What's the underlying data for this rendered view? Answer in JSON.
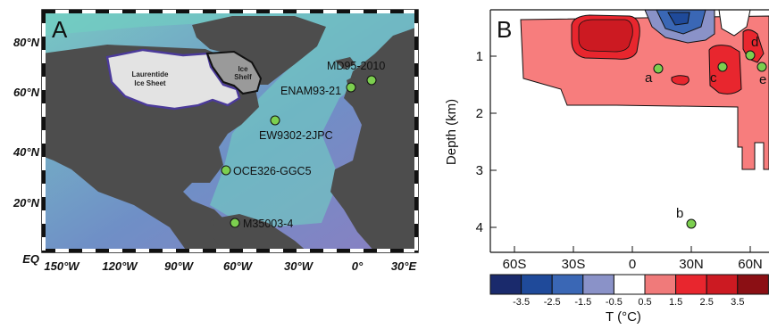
{
  "panel_a": {
    "label": "A",
    "lat_labels": [
      "80°N",
      "60°N",
      "40°N",
      "20°N",
      "EQ"
    ],
    "lon_labels": [
      "150°W",
      "120°W",
      "90°W",
      "60°W",
      "30°W",
      "0°",
      "30°E"
    ],
    "ice_sheet": "Laurentide Ice Sheet",
    "ice_shelf": "Ice Shelf",
    "sites": [
      "MD95-2010",
      "ENAM93-21",
      "EW9302-2JPC",
      "OCE326-GGC5",
      "M35003-4"
    ]
  },
  "panel_b": {
    "label": "B",
    "ylabel": "Depth (km)",
    "y_ticks": [
      "1",
      "2",
      "3",
      "4"
    ],
    "x_ticks": [
      "60S",
      "30S",
      "0",
      "30N",
      "60N"
    ],
    "point_labels": [
      "a",
      "b",
      "c",
      "d",
      "e"
    ],
    "colorbar_ticks": [
      "-3.5",
      "-2.5",
      "-1.5",
      "-0.5",
      "0.5",
      "1.5",
      "2.5",
      "3.5"
    ],
    "colorbar_label": "T (°C)",
    "colorbar_colors": [
      "#1a2a6c",
      "#1f4a9a",
      "#3a67b5",
      "#8a92c8",
      "#ffffff",
      "#f07a7a",
      "#e8262e",
      "#cc1a22",
      "#8b0f14"
    ]
  }
}
